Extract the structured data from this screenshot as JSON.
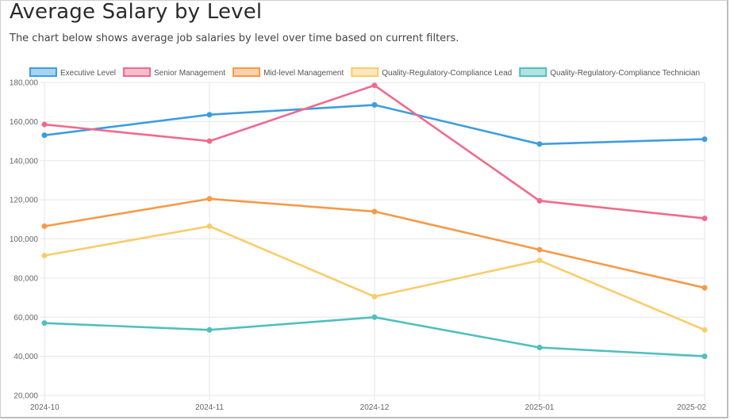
{
  "page": {
    "title": "Average Salary by Level",
    "subtitle": "The chart below shows average job salaries by level over time based on current filters."
  },
  "chart_data": {
    "type": "line",
    "categories": [
      "2024-10",
      "2024-11",
      "2024-12",
      "2025-01",
      "2025-02"
    ],
    "ylim": [
      20000,
      180000
    ],
    "yticks": [
      20000,
      40000,
      60000,
      80000,
      100000,
      120000,
      140000,
      160000,
      180000
    ],
    "ytick_labels": [
      "20,000",
      "40,000",
      "60,000",
      "80,000",
      "100,000",
      "120,000",
      "140,000",
      "160,000",
      "180,000"
    ],
    "grid": true,
    "legend_position": "top",
    "series": [
      {
        "name": "Executive Level",
        "color": "#3d9de0",
        "values": [
          153000,
          163500,
          168500,
          148500,
          151000
        ]
      },
      {
        "name": "Senior Management",
        "color": "#f06a8c",
        "values": [
          158500,
          150000,
          178500,
          119500,
          110500
        ]
      },
      {
        "name": "Mid-level Management",
        "color": "#f59a48",
        "values": [
          106500,
          120500,
          114000,
          94500,
          75000
        ]
      },
      {
        "name": "Quality-Regulatory-Compliance Lead",
        "color": "#f8cd6a",
        "values": [
          91500,
          106500,
          70500,
          89000,
          53500
        ]
      },
      {
        "name": "Quality-Regulatory-Compliance Technician",
        "color": "#4fc0bd",
        "values": [
          57000,
          53500,
          60000,
          44500,
          40000
        ]
      }
    ]
  }
}
